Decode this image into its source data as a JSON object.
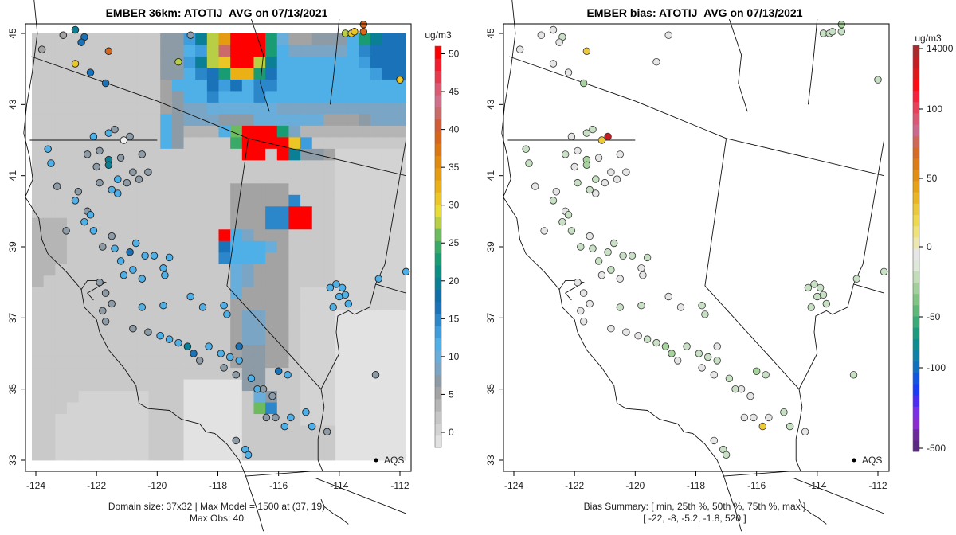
{
  "chart_data": [
    {
      "type": "heatmap",
      "title": "EMBER 36km: ATOTIJ_AVG on 07/13/2021",
      "xlabel": "",
      "ylabel": "",
      "xlim": [
        -124.3,
        -111.7
      ],
      "ylim": [
        32.7,
        45.3
      ],
      "x_ticks": [
        "-124",
        "-122",
        "-120",
        "-118",
        "-116",
        "-114",
        "-112"
      ],
      "x_tick_values": [
        -124,
        -122,
        -120,
        -118,
        -116,
        -114,
        -112
      ],
      "y_ticks": [
        "33",
        "35",
        "37",
        "39",
        "41",
        "43",
        "45"
      ],
      "y_tick_values": [
        33,
        35,
        37,
        39,
        41,
        43,
        45
      ],
      "colorbar": {
        "unit": "ug/m3",
        "tick_labels": [
          "0",
          "5",
          "10",
          "15",
          "20",
          "25",
          "30",
          "35",
          "40",
          "45",
          "50"
        ],
        "tick_values": [
          0,
          5,
          10,
          15,
          20,
          25,
          30,
          35,
          40,
          45,
          50
        ],
        "range": [
          -2,
          51
        ],
        "colors": [
          "#e2e2e2",
          "#d3d3d3",
          "#c6c6c6",
          "#b5b5b5",
          "#a3a3a3",
          "#8c9ba6",
          "#7ba5c4",
          "#69aedb",
          "#4fb0e8",
          "#3e9ddd",
          "#2b87ca",
          "#1a73b8",
          "#0f6fa8",
          "#0a7f95",
          "#0b8f84",
          "#1a9c73",
          "#3aaa68",
          "#6cbb5e",
          "#b8cf45",
          "#e8dc35",
          "#ebc625",
          "#eab016",
          "#e59c10",
          "#e08a10",
          "#db7813",
          "#d8661a",
          "#d05d35",
          "#cc6a6a",
          "#d2708c",
          "#dc5a72",
          "#e63a4f",
          "#f21d2d",
          "#ff0000"
        ]
      },
      "grid": {
        "lon_range": [
          -124.2,
          -112.3
        ],
        "lat_range": [
          33.0,
          45.0
        ],
        "cols": 32,
        "rows": 37
      },
      "stations_label": "AQS",
      "annotation_lines": [
        "Domain size: 37x32 | Max Model = 1500 at (37, 19)",
        "Max Obs: 40"
      ]
    },
    {
      "type": "scatter",
      "title": "EMBER bias: ATOTIJ_AVG on 07/13/2021",
      "xlabel": "",
      "ylabel": "",
      "xlim": [
        -124.3,
        -111.7
      ],
      "ylim": [
        32.7,
        45.3
      ],
      "x_ticks": [
        "-124",
        "-122",
        "-120",
        "-118",
        "-116",
        "-114",
        "-112"
      ],
      "x_tick_values": [
        -124,
        -122,
        -120,
        -118,
        -116,
        -114,
        -112
      ],
      "y_ticks": [
        "33",
        "35",
        "37",
        "39",
        "41",
        "43",
        "45"
      ],
      "y_tick_values": [
        33,
        35,
        37,
        39,
        41,
        43,
        45
      ],
      "colorbar": {
        "unit": "ug/m3",
        "tick_labels": [
          "-500",
          "-100",
          "-50",
          "0",
          "50",
          "100",
          "14000"
        ],
        "colors": [
          "#5a2a82",
          "#6a2a9a",
          "#8a2ad0",
          "#7b2ee6",
          "#4b2cf0",
          "#1a3cf5",
          "#1255e0",
          "#1070c0",
          "#0f80a8",
          "#0e8d90",
          "#1a9a7e",
          "#3aaa78",
          "#5eb878",
          "#80c484",
          "#a2d09c",
          "#c2ddb8",
          "#dde8d8",
          "#e6e6e6",
          "#ece6b0",
          "#efe27a",
          "#eed94e",
          "#ecc93a",
          "#e9b524",
          "#e6a214",
          "#e18e12",
          "#dc7c14",
          "#d66b24",
          "#d06858",
          "#cc6a8e",
          "#da5874",
          "#e84058",
          "#f4223a",
          "#ff0c14",
          "#e01818",
          "#c41e22",
          "#a82a2a"
        ]
      },
      "stations_label": "AQS",
      "annotation_lines": [
        "Bias Summary: [ min, 25th %, 50th %, 75th %, max ]",
        "[ -22,  -8,  -5.2,  -1.8,  520 ]"
      ]
    }
  ]
}
